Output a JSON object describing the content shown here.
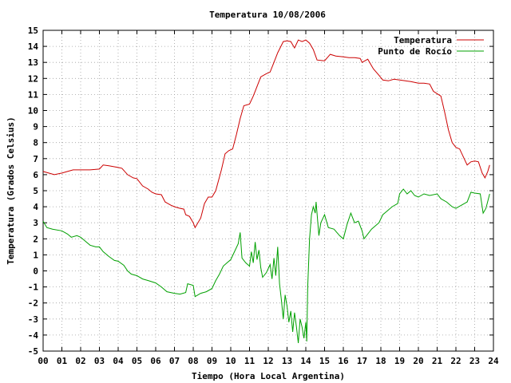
{
  "chart_data": {
    "type": "line",
    "title": "Temperatura 10/08/2006",
    "xlabel": "Tiempo (Hora Local Argentina)",
    "ylabel": "Temperatura (Grados Celsius)",
    "xlim": [
      0,
      24
    ],
    "ylim": [
      -5,
      15
    ],
    "grid": true,
    "legend_position": "top-right",
    "x_tick_labels": [
      "00",
      "01",
      "02",
      "03",
      "04",
      "05",
      "06",
      "07",
      "08",
      "09",
      "10",
      "11",
      "12",
      "13",
      "14",
      "15",
      "16",
      "17",
      "18",
      "19",
      "20",
      "21",
      "22",
      "23",
      "24"
    ],
    "y_tick_labels": [
      "-5",
      "-4",
      "-3",
      "-2",
      "-1",
      "0",
      "1",
      "2",
      "3",
      "4",
      "5",
      "6",
      "7",
      "8",
      "9",
      "10",
      "11",
      "12",
      "13",
      "14",
      "15"
    ],
    "series": [
      {
        "name": "Temperatura",
        "color": "#cc0000",
        "points": [
          [
            0.0,
            6.2
          ],
          [
            0.3,
            6.1
          ],
          [
            0.6,
            6.0
          ],
          [
            1.0,
            6.1
          ],
          [
            1.3,
            6.2
          ],
          [
            1.6,
            6.3
          ],
          [
            2.0,
            6.3
          ],
          [
            2.5,
            6.3
          ],
          [
            3.0,
            6.35
          ],
          [
            3.2,
            6.6
          ],
          [
            3.5,
            6.55
          ],
          [
            4.0,
            6.45
          ],
          [
            4.2,
            6.4
          ],
          [
            4.5,
            6.0
          ],
          [
            4.8,
            5.8
          ],
          [
            5.0,
            5.75
          ],
          [
            5.3,
            5.3
          ],
          [
            5.6,
            5.1
          ],
          [
            5.8,
            4.9
          ],
          [
            6.0,
            4.8
          ],
          [
            6.3,
            4.75
          ],
          [
            6.5,
            4.3
          ],
          [
            6.8,
            4.1
          ],
          [
            7.0,
            4.0
          ],
          [
            7.3,
            3.9
          ],
          [
            7.5,
            3.85
          ],
          [
            7.6,
            3.5
          ],
          [
            7.8,
            3.4
          ],
          [
            8.0,
            3.0
          ],
          [
            8.1,
            2.7
          ],
          [
            8.2,
            2.9
          ],
          [
            8.4,
            3.3
          ],
          [
            8.6,
            4.2
          ],
          [
            8.8,
            4.6
          ],
          [
            9.0,
            4.6
          ],
          [
            9.2,
            5.0
          ],
          [
            9.5,
            6.3
          ],
          [
            9.7,
            7.3
          ],
          [
            9.9,
            7.5
          ],
          [
            10.1,
            7.6
          ],
          [
            10.3,
            8.5
          ],
          [
            10.5,
            9.5
          ],
          [
            10.7,
            10.3
          ],
          [
            11.0,
            10.4
          ],
          [
            11.2,
            10.9
          ],
          [
            11.4,
            11.5
          ],
          [
            11.6,
            12.1
          ],
          [
            11.9,
            12.3
          ],
          [
            12.1,
            12.4
          ],
          [
            12.3,
            13.0
          ],
          [
            12.5,
            13.6
          ],
          [
            12.8,
            14.3
          ],
          [
            13.0,
            14.35
          ],
          [
            13.2,
            14.3
          ],
          [
            13.4,
            13.9
          ],
          [
            13.6,
            14.4
          ],
          [
            13.8,
            14.3
          ],
          [
            14.0,
            14.4
          ],
          [
            14.2,
            14.2
          ],
          [
            14.4,
            13.8
          ],
          [
            14.6,
            13.15
          ],
          [
            15.0,
            13.1
          ],
          [
            15.3,
            13.5
          ],
          [
            15.6,
            13.4
          ],
          [
            16.0,
            13.35
          ],
          [
            16.3,
            13.3
          ],
          [
            16.6,
            13.3
          ],
          [
            16.9,
            13.25
          ],
          [
            17.0,
            13.0
          ],
          [
            17.3,
            13.2
          ],
          [
            17.6,
            12.6
          ],
          [
            17.9,
            12.2
          ],
          [
            18.1,
            11.9
          ],
          [
            18.4,
            11.85
          ],
          [
            18.7,
            11.95
          ],
          [
            19.0,
            11.9
          ],
          [
            19.3,
            11.85
          ],
          [
            19.6,
            11.8
          ],
          [
            20.0,
            11.7
          ],
          [
            20.3,
            11.7
          ],
          [
            20.6,
            11.65
          ],
          [
            20.8,
            11.2
          ],
          [
            21.0,
            11.05
          ],
          [
            21.2,
            10.9
          ],
          [
            21.4,
            9.9
          ],
          [
            21.6,
            8.8
          ],
          [
            21.8,
            8.0
          ],
          [
            22.0,
            7.7
          ],
          [
            22.2,
            7.6
          ],
          [
            22.4,
            7.1
          ],
          [
            22.6,
            6.6
          ],
          [
            22.8,
            6.8
          ],
          [
            23.0,
            6.85
          ],
          [
            23.2,
            6.8
          ],
          [
            23.4,
            6.1
          ],
          [
            23.55,
            5.8
          ],
          [
            23.7,
            6.2
          ],
          [
            23.8,
            6.6
          ]
        ]
      },
      {
        "name": "Punto de Rocío",
        "color": "#00a000",
        "points": [
          [
            0.0,
            3.1
          ],
          [
            0.2,
            2.7
          ],
          [
            0.5,
            2.6
          ],
          [
            1.0,
            2.5
          ],
          [
            1.3,
            2.3
          ],
          [
            1.5,
            2.1
          ],
          [
            1.8,
            2.2
          ],
          [
            2.0,
            2.1
          ],
          [
            2.2,
            1.9
          ],
          [
            2.5,
            1.6
          ],
          [
            2.8,
            1.5
          ],
          [
            3.0,
            1.5
          ],
          [
            3.2,
            1.2
          ],
          [
            3.5,
            0.9
          ],
          [
            3.8,
            0.65
          ],
          [
            4.0,
            0.6
          ],
          [
            4.3,
            0.35
          ],
          [
            4.5,
            0.0
          ],
          [
            4.7,
            -0.2
          ],
          [
            5.0,
            -0.3
          ],
          [
            5.3,
            -0.5
          ],
          [
            5.6,
            -0.6
          ],
          [
            6.0,
            -0.75
          ],
          [
            6.3,
            -1.0
          ],
          [
            6.6,
            -1.3
          ],
          [
            7.0,
            -1.4
          ],
          [
            7.3,
            -1.45
          ],
          [
            7.6,
            -1.35
          ],
          [
            7.7,
            -0.8
          ],
          [
            8.0,
            -0.9
          ],
          [
            8.1,
            -1.6
          ],
          [
            8.4,
            -1.4
          ],
          [
            8.7,
            -1.3
          ],
          [
            9.0,
            -1.1
          ],
          [
            9.2,
            -0.6
          ],
          [
            9.4,
            -0.2
          ],
          [
            9.6,
            0.3
          ],
          [
            9.8,
            0.5
          ],
          [
            10.0,
            0.7
          ],
          [
            10.2,
            1.2
          ],
          [
            10.4,
            1.7
          ],
          [
            10.5,
            2.4
          ],
          [
            10.6,
            0.8
          ],
          [
            10.8,
            0.5
          ],
          [
            11.0,
            0.3
          ],
          [
            11.1,
            1.2
          ],
          [
            11.2,
            0.5
          ],
          [
            11.3,
            1.8
          ],
          [
            11.4,
            0.7
          ],
          [
            11.5,
            1.3
          ],
          [
            11.6,
            0.2
          ],
          [
            11.7,
            -0.4
          ],
          [
            11.9,
            -0.1
          ],
          [
            12.1,
            0.4
          ],
          [
            12.2,
            -0.5
          ],
          [
            12.3,
            0.8
          ],
          [
            12.4,
            -0.3
          ],
          [
            12.5,
            1.5
          ],
          [
            12.6,
            -0.8
          ],
          [
            12.7,
            -1.8
          ],
          [
            12.8,
            -3.0
          ],
          [
            12.9,
            -1.5
          ],
          [
            13.0,
            -2.2
          ],
          [
            13.1,
            -3.2
          ],
          [
            13.2,
            -2.5
          ],
          [
            13.3,
            -3.8
          ],
          [
            13.4,
            -2.6
          ],
          [
            13.5,
            -3.5
          ],
          [
            13.6,
            -4.5
          ],
          [
            13.7,
            -3.0
          ],
          [
            13.8,
            -3.5
          ],
          [
            13.9,
            -4.2
          ],
          [
            14.0,
            -3.2
          ],
          [
            14.05,
            -4.4
          ],
          [
            14.1,
            -1.0
          ],
          [
            14.2,
            2.0
          ],
          [
            14.3,
            3.5
          ],
          [
            14.4,
            4.0
          ],
          [
            14.5,
            3.6
          ],
          [
            14.55,
            4.3
          ],
          [
            14.7,
            2.2
          ],
          [
            14.8,
            3.0
          ],
          [
            15.0,
            3.5
          ],
          [
            15.2,
            2.7
          ],
          [
            15.5,
            2.6
          ],
          [
            15.8,
            2.2
          ],
          [
            16.0,
            2.0
          ],
          [
            16.2,
            2.9
          ],
          [
            16.4,
            3.6
          ],
          [
            16.6,
            3.0
          ],
          [
            16.8,
            3.1
          ],
          [
            17.0,
            2.5
          ],
          [
            17.1,
            2.0
          ],
          [
            17.3,
            2.3
          ],
          [
            17.5,
            2.6
          ],
          [
            17.7,
            2.8
          ],
          [
            17.9,
            3.0
          ],
          [
            18.1,
            3.5
          ],
          [
            18.3,
            3.7
          ],
          [
            18.6,
            4.0
          ],
          [
            18.9,
            4.2
          ],
          [
            19.0,
            4.8
          ],
          [
            19.2,
            5.1
          ],
          [
            19.4,
            4.8
          ],
          [
            19.6,
            5.0
          ],
          [
            19.8,
            4.7
          ],
          [
            20.0,
            4.6
          ],
          [
            20.3,
            4.8
          ],
          [
            20.6,
            4.7
          ],
          [
            21.0,
            4.8
          ],
          [
            21.2,
            4.5
          ],
          [
            21.5,
            4.3
          ],
          [
            21.8,
            4.0
          ],
          [
            22.0,
            3.9
          ],
          [
            22.3,
            4.1
          ],
          [
            22.6,
            4.3
          ],
          [
            22.8,
            4.9
          ],
          [
            23.0,
            4.85
          ],
          [
            23.3,
            4.8
          ],
          [
            23.45,
            3.6
          ],
          [
            23.6,
            3.9
          ],
          [
            23.8,
            4.8
          ]
        ]
      }
    ]
  }
}
